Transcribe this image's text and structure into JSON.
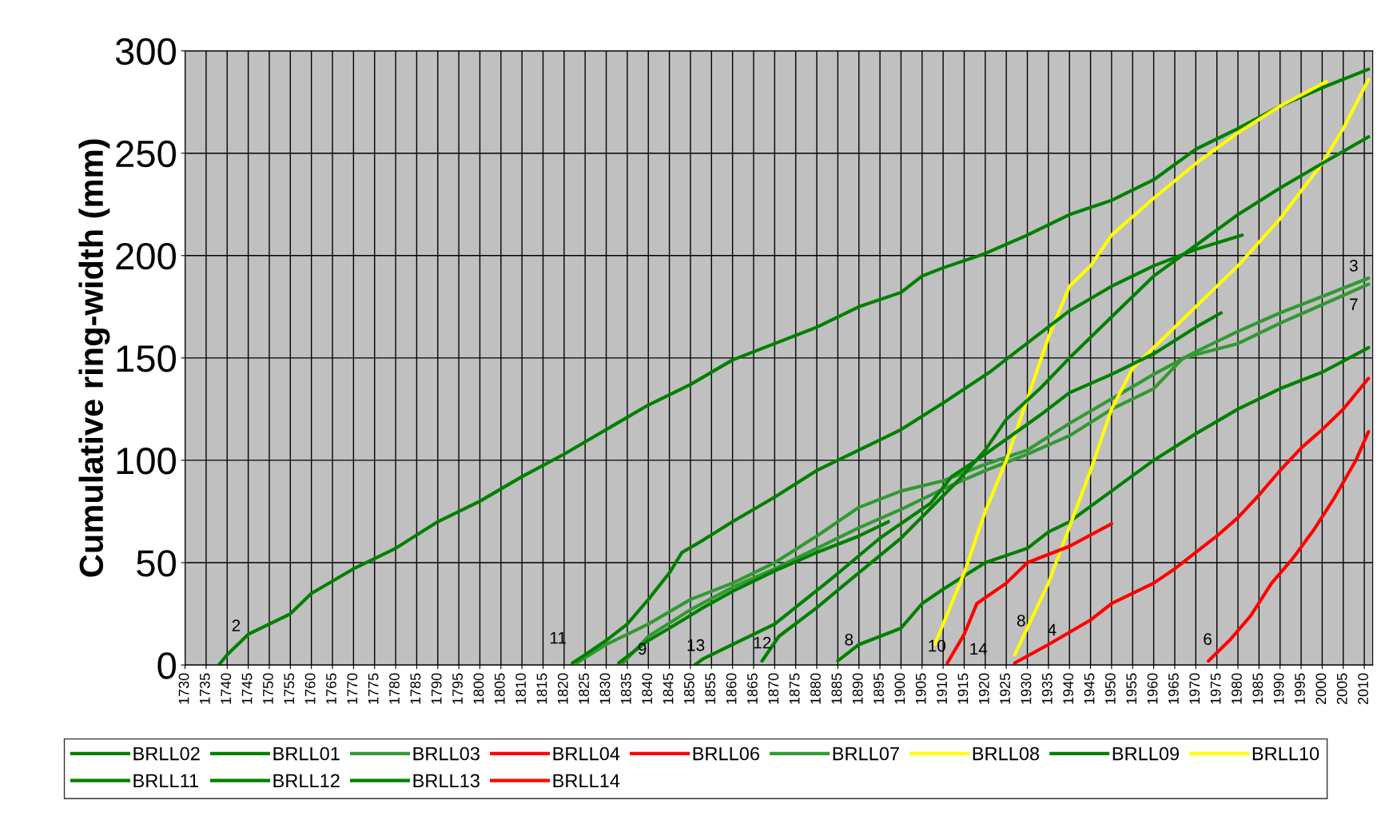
{
  "chart_data": {
    "type": "line",
    "ylabel": "Cumulative ring-width (mm)",
    "xlim": [
      1730,
      2012
    ],
    "xticks": [
      1730,
      1735,
      1740,
      1745,
      1750,
      1755,
      1760,
      1765,
      1770,
      1775,
      1780,
      1785,
      1790,
      1795,
      1800,
      1805,
      1810,
      1815,
      1820,
      1825,
      1830,
      1835,
      1840,
      1845,
      1850,
      1855,
      1860,
      1865,
      1870,
      1875,
      1880,
      1885,
      1890,
      1895,
      1900,
      1905,
      1910,
      1915,
      1920,
      1925,
      1930,
      1935,
      1940,
      1945,
      1950,
      1955,
      1960,
      1965,
      1970,
      1975,
      1980,
      1985,
      1990,
      1995,
      2000,
      2005,
      2010
    ],
    "ylim": [
      0,
      300
    ],
    "yticks": [
      0,
      50,
      100,
      150,
      200,
      250,
      300
    ],
    "grid": true,
    "legend": "bottom",
    "marker": "none",
    "line_style": "solid",
    "series": [
      {
        "name": "BRLL02",
        "color": "#008000",
        "x": [
          1738,
          1740,
          1745,
          1750,
          1755,
          1760,
          1770,
          1780,
          1790,
          1800,
          1810,
          1820,
          1830,
          1840,
          1850,
          1860,
          1870,
          1880,
          1890,
          1900,
          1905,
          1910,
          1920,
          1930,
          1940,
          1950,
          1960,
          1970,
          1980,
          1990,
          2000,
          2011
        ],
        "values": [
          0,
          5,
          15,
          20,
          25,
          35,
          47,
          57,
          70,
          80,
          92,
          103,
          115,
          127,
          137,
          149,
          157,
          165,
          175,
          182,
          190,
          194,
          201,
          210,
          220,
          227,
          237,
          252,
          262,
          273,
          282,
          291
        ]
      },
      {
        "name": "BRLL01",
        "color": "#008000",
        "x": [
          1885,
          1890,
          1900,
          1905,
          1910,
          1920,
          1930,
          1935,
          1940,
          1950,
          1960,
          1970,
          1980,
          1990,
          2000,
          2011
        ],
        "values": [
          2,
          10,
          18,
          30,
          37,
          50,
          57,
          65,
          70,
          85,
          100,
          113,
          125,
          135,
          143,
          155
        ]
      },
      {
        "name": "BRLL03",
        "color": "#339933",
        "x": [
          1823,
          1830,
          1840,
          1850,
          1860,
          1870,
          1880,
          1890,
          1900,
          1910,
          1920,
          1930,
          1940,
          1950,
          1960,
          1970,
          1980,
          1990,
          2000,
          2011
        ],
        "values": [
          1,
          10,
          20,
          32,
          40,
          50,
          63,
          77,
          85,
          90,
          98,
          105,
          118,
          130,
          142,
          153,
          163,
          172,
          180,
          189
        ]
      },
      {
        "name": "BRLL04",
        "color": "#ff0000",
        "x": [
          1927,
          1935,
          1945,
          1950,
          1960,
          1965,
          1970,
          1975,
          1980,
          1985,
          1990,
          1995,
          2000,
          2005,
          2011
        ],
        "values": [
          1,
          10,
          22,
          30,
          40,
          47,
          55,
          63,
          72,
          83,
          95,
          106,
          115,
          125,
          140
        ]
      },
      {
        "name": "BRLL06",
        "color": "#ff0000",
        "x": [
          1973,
          1978,
          1983,
          1988,
          1993,
          1998,
          2003,
          2008,
          2011
        ],
        "values": [
          2,
          12,
          24,
          40,
          52,
          66,
          82,
          100,
          114
        ]
      },
      {
        "name": "BRLL07",
        "color": "#339933",
        "x": [
          1834,
          1840,
          1850,
          1860,
          1870,
          1880,
          1890,
          1900,
          1910,
          1920,
          1930,
          1940,
          1950,
          1960,
          1967,
          1980,
          1990,
          2000,
          2011
        ],
        "values": [
          1,
          14,
          27,
          38,
          47,
          57,
          67,
          76,
          86,
          95,
          103,
          112,
          125,
          135,
          150,
          157,
          167,
          176,
          186
        ]
      },
      {
        "name": "BRLL08",
        "color": "#ffff00",
        "x": [
          1927,
          1935,
          1945,
          1950,
          1955,
          1960,
          1970,
          1980,
          1990,
          2000,
          2005,
          2011
        ],
        "values": [
          5,
          40,
          95,
          125,
          145,
          155,
          175,
          195,
          218,
          245,
          262,
          286
        ]
      },
      {
        "name": "BRLL09",
        "color": "#008000",
        "x": [
          1833,
          1840,
          1845,
          1853,
          1860,
          1870,
          1880,
          1890,
          1897
        ],
        "values": [
          1,
          12,
          18,
          28,
          36,
          46,
          55,
          63,
          70
        ]
      },
      {
        "name": "BRLL10",
        "color": "#ffff00",
        "x": [
          1908,
          1915,
          1920,
          1925,
          1930,
          1935,
          1940,
          1945,
          1950,
          1960,
          1970,
          1980,
          1990,
          2001
        ],
        "values": [
          10,
          45,
          75,
          100,
          130,
          160,
          185,
          195,
          210,
          228,
          245,
          260,
          273,
          285
        ]
      },
      {
        "name": "BRLL11",
        "color": "#008000",
        "x": [
          1822,
          1825,
          1830,
          1835,
          1840,
          1845,
          1848,
          1853,
          1860,
          1870,
          1880,
          1890,
          1900,
          1910,
          1921,
          1933,
          1940,
          1950,
          1960,
          1970,
          1981
        ],
        "values": [
          1,
          5,
          12,
          20,
          32,
          45,
          55,
          61,
          70,
          82,
          95,
          105,
          115,
          128,
          143,
          162,
          173,
          185,
          195,
          203,
          210
        ]
      },
      {
        "name": "BRLL12",
        "color": "#008000",
        "x": [
          1867,
          1871,
          1880,
          1887,
          1900,
          1914,
          1920,
          1925,
          1933,
          1940,
          1950,
          1960,
          1970,
          1980,
          1990,
          2000,
          2011
        ],
        "values": [
          2,
          14,
          28,
          40,
          62,
          91,
          105,
          120,
          135,
          150,
          170,
          190,
          205,
          220,
          233,
          245,
          258
        ]
      },
      {
        "name": "BRLL13",
        "color": "#008000",
        "x": [
          1851,
          1853,
          1860,
          1870,
          1884,
          1895,
          1907,
          1912,
          1920,
          1933,
          1940,
          1950,
          1960,
          1970,
          1976
        ],
        "values": [
          0,
          3,
          10,
          20,
          43,
          62,
          79,
          92,
          103,
          122,
          133,
          142,
          152,
          165,
          172
        ]
      },
      {
        "name": "BRLL14",
        "color": "#ff0000",
        "x": [
          1911,
          1915,
          1918,
          1925,
          1930,
          1940,
          1950
        ],
        "values": [
          1,
          15,
          30,
          40,
          50,
          58,
          69
        ]
      }
    ],
    "annotations": [
      "2",
      "11",
      "9",
      "13",
      "12",
      "8",
      "10",
      "14",
      "8",
      "4",
      "6",
      "3",
      "7"
    ]
  }
}
